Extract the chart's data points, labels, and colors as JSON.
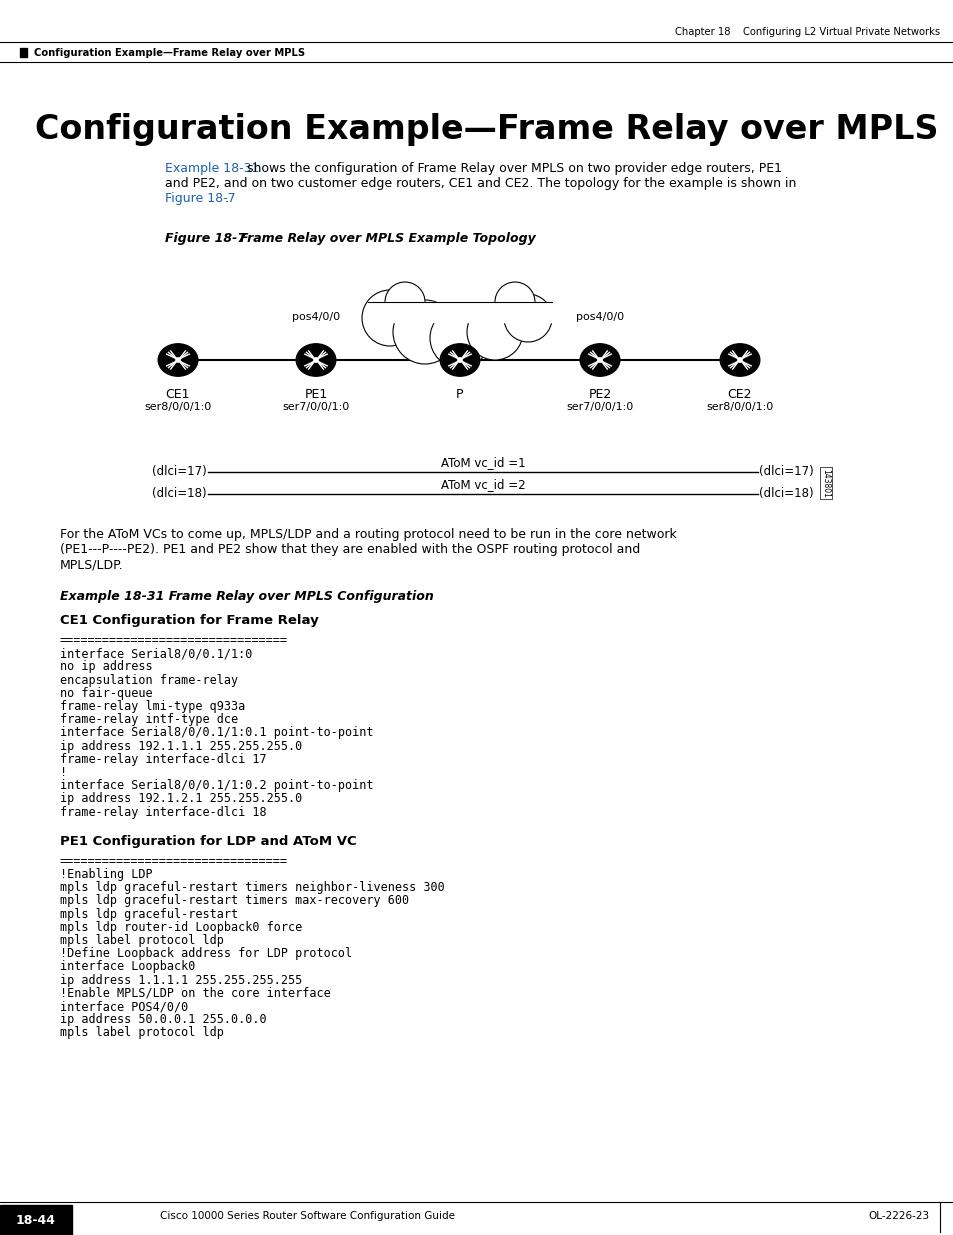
{
  "bg_color": "#ffffff",
  "header_chapter": "Chapter 18    Configuring L2 Virtual Private Networks",
  "header_section": "Configuration Example—Frame Relay over MPLS",
  "main_title": "Configuration Example—Frame Relay over MPLS",
  "figure_label": "Figure 18-7",
  "figure_title": "Frame Relay over MPLS Example Topology",
  "routers": [
    {
      "label": "CE1",
      "sublabel": "ser8/0/0/1:0"
    },
    {
      "label": "PE1",
      "sublabel": "ser7/0/0/1:0"
    },
    {
      "label": "P",
      "sublabel": ""
    },
    {
      "label": "PE2",
      "sublabel": "ser7/0/0/1:0"
    },
    {
      "label": "CE2",
      "sublabel": "ser8/0/0/1:0"
    }
  ],
  "dlci_lines": [
    {
      "left_label": "(dlci=17)",
      "right_label": "(dlci=17)",
      "center_label": "AToM vc_id =1"
    },
    {
      "left_label": "(dlci=18)",
      "right_label": "(dlci=18)",
      "center_label": "AToM vc_id =2"
    }
  ],
  "watermark": "143801",
  "para1_lines": [
    "For the AToM VCs to come up, MPLS/LDP and a routing protocol need to be run in the core network",
    "(PE1---P----PE2). PE1 and PE2 show that they are enabled with the OSPF routing protocol and",
    "MPLS/LDP."
  ],
  "example_label": "Example 18-31 Frame Relay over MPLS Configuration",
  "section1_title": "CE1 Configuration for Frame Relay",
  "section1_code": [
    "================================",
    "interface Serial8/0/0.1/1:0",
    "no ip address",
    "encapsulation frame-relay",
    "no fair-queue",
    "frame-relay lmi-type q933a",
    "frame-relay intf-type dce",
    "interface Serial8/0/0.1/1:0.1 point-to-point",
    "ip address 192.1.1.1 255.255.255.0",
    "frame-relay interface-dlci 17",
    "!",
    "interface Serial8/0/0.1/1:0.2 point-to-point",
    "ip address 192.1.2.1 255.255.255.0",
    "frame-relay interface-dlci 18"
  ],
  "section2_title": "PE1 Configuration for LDP and AToM VC",
  "section2_code": [
    "================================",
    "!Enabling LDP",
    "mpls ldp graceful-restart timers neighbor-liveness 300",
    "mpls ldp graceful-restart timers max-recovery 600",
    "mpls ldp graceful-restart",
    "mpls ldp router-id Loopback0 force",
    "mpls label protocol ldp",
    "!Define Loopback address for LDP protocol",
    "interface Loopback0",
    "ip address 1.1.1.1 255.255.255.255",
    "!Enable MPLS/LDP on the core interface",
    "interface POS4/0/0",
    "ip address 50.0.0.1 255.0.0.0",
    "mpls label protocol ldp"
  ],
  "footer_left": "Cisco 10000 Series Router Software Configuration Guide",
  "footer_page": "18-44",
  "footer_right": "OL-2226-23"
}
